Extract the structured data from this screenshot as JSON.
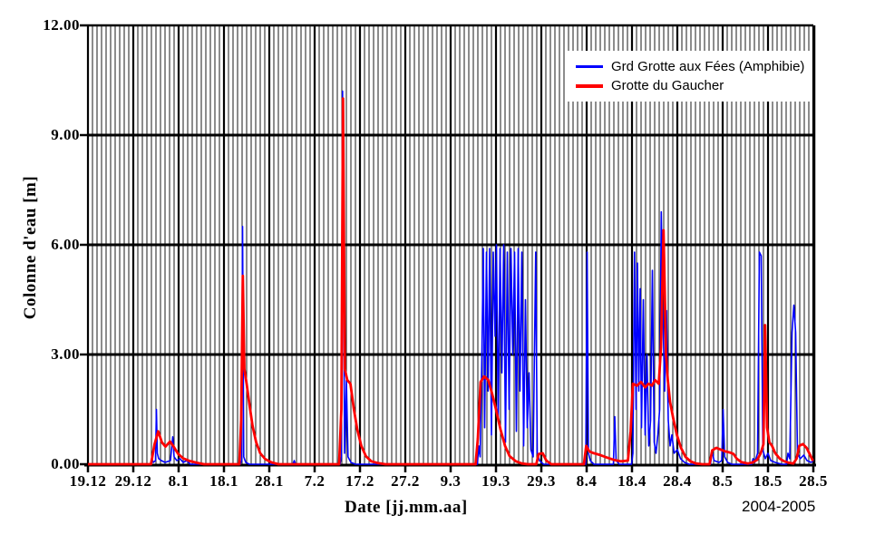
{
  "figure": {
    "y_axis_title": "Colonne d'eau [m]",
    "x_axis_title": "Date [jj.mm.aa]",
    "period_label": "2004-2005"
  },
  "legend": {
    "items": [
      {
        "label": "Grd Grotte aux Fées (Amphibie)",
        "color": "#0000ff",
        "thickness": 3
      },
      {
        "label": "Grotte du Gaucher",
        "color": "#ff0000",
        "thickness": 4
      }
    ]
  },
  "chart_data": {
    "type": "line",
    "title": "",
    "xlabel": "Date [jj.mm.aa]",
    "ylabel": "Colonne d'eau [m]",
    "x_unit": "days since 19.12.2004",
    "xlim": [
      0,
      160
    ],
    "ylim": [
      0,
      12
    ],
    "grid": {
      "vertical_every_days": 1,
      "vertical_major_every_days": 10,
      "horizontal_major_at": [
        3,
        6,
        9
      ]
    },
    "legend_position": "top-right",
    "y_ticks": [
      {
        "value": 0,
        "label": "0.00"
      },
      {
        "value": 3,
        "label": "3.00"
      },
      {
        "value": 6,
        "label": "6.00"
      },
      {
        "value": 9,
        "label": "9.00"
      },
      {
        "value": 12,
        "label": "12.00"
      }
    ],
    "x_ticks": [
      {
        "day": 0,
        "label": "19.12"
      },
      {
        "day": 10,
        "label": "29.12"
      },
      {
        "day": 20,
        "label": "8.1"
      },
      {
        "day": 30,
        "label": "18.1"
      },
      {
        "day": 40,
        "label": "28.1"
      },
      {
        "day": 50,
        "label": "7.2"
      },
      {
        "day": 60,
        "label": "17.2"
      },
      {
        "day": 70,
        "label": "27.2"
      },
      {
        "day": 80,
        "label": "9.3"
      },
      {
        "day": 90,
        "label": "19.3"
      },
      {
        "day": 100,
        "label": "29.3"
      },
      {
        "day": 110,
        "label": "8.4"
      },
      {
        "day": 120,
        "label": "18.4"
      },
      {
        "day": 130,
        "label": "28.4"
      },
      {
        "day": 140,
        "label": "8.5"
      },
      {
        "day": 150,
        "label": "18.5"
      },
      {
        "day": 160,
        "label": "28.5"
      }
    ],
    "series": [
      {
        "name": "Grd Grotte aux Fées (Amphibie)",
        "color": "#0000ff",
        "stroke_width": 1.6,
        "points": [
          [
            0,
            0
          ],
          [
            13.8,
            0
          ],
          [
            14.1,
            0.15
          ],
          [
            14.4,
            0.05
          ],
          [
            14.9,
            0.1
          ],
          [
            15.1,
            1.5
          ],
          [
            15.3,
            0.3
          ],
          [
            15.6,
            0.15
          ],
          [
            16.2,
            0.1
          ],
          [
            17,
            0.05
          ],
          [
            18.2,
            0.1
          ],
          [
            18.7,
            0.75
          ],
          [
            19,
            0.2
          ],
          [
            19.6,
            0.1
          ],
          [
            20.3,
            0.15
          ],
          [
            21,
            0.05
          ],
          [
            21.8,
            0.1
          ],
          [
            22.6,
            0
          ],
          [
            33.6,
            0
          ],
          [
            33.9,
            0.1
          ],
          [
            34.1,
            6.5
          ],
          [
            34.35,
            0.2
          ],
          [
            34.8,
            0.05
          ],
          [
            35.6,
            0
          ],
          [
            45.2,
            0
          ],
          [
            45.5,
            0.1
          ],
          [
            45.8,
            0
          ],
          [
            55.6,
            0
          ],
          [
            55.9,
            0.2
          ],
          [
            56.15,
            10.2
          ],
          [
            56.4,
            4.9
          ],
          [
            56.6,
            0.3
          ],
          [
            57,
            2.3
          ],
          [
            57.35,
            0.2
          ],
          [
            58,
            0.05
          ],
          [
            59,
            0
          ],
          [
            85.9,
            0
          ],
          [
            86.2,
            0.5
          ],
          [
            86.5,
            0.2
          ],
          [
            86.9,
            3
          ],
          [
            87.2,
            5.9
          ],
          [
            87.5,
            1
          ],
          [
            87.9,
            5.8
          ],
          [
            88.25,
            2
          ],
          [
            88.6,
            5.9
          ],
          [
            89,
            0.8
          ],
          [
            89.4,
            5.8
          ],
          [
            89.8,
            3.5
          ],
          [
            90.1,
            6
          ],
          [
            90.5,
            1.2
          ],
          [
            90.9,
            5.9
          ],
          [
            91.3,
            2.5
          ],
          [
            91.7,
            6
          ],
          [
            92.1,
            0.6
          ],
          [
            92.5,
            5.8
          ],
          [
            92.9,
            1.5
          ],
          [
            93.3,
            5.9
          ],
          [
            93.7,
            3
          ],
          [
            94.1,
            5.8
          ],
          [
            94.5,
            0.9
          ],
          [
            94.9,
            5.9
          ],
          [
            95.3,
            2
          ],
          [
            95.7,
            5.8
          ],
          [
            96.1,
            0.5
          ],
          [
            96.5,
            4.5
          ],
          [
            96.9,
            1
          ],
          [
            97.3,
            2.5
          ],
          [
            97.7,
            0.4
          ],
          [
            98.2,
            0.2
          ],
          [
            98.75,
            5.8
          ],
          [
            99.1,
            0.3
          ],
          [
            99.6,
            0.1
          ],
          [
            100.5,
            0
          ],
          [
            109.8,
            0
          ],
          [
            110.1,
            5.8
          ],
          [
            110.4,
            0.3
          ],
          [
            110.8,
            0.1
          ],
          [
            111.6,
            0
          ],
          [
            115.9,
            0
          ],
          [
            116.2,
            1.3
          ],
          [
            116.5,
            0.1
          ],
          [
            117.2,
            0
          ],
          [
            119.9,
            0
          ],
          [
            120.2,
            0.3
          ],
          [
            120.55,
            5.8
          ],
          [
            120.9,
            1.5
          ],
          [
            121.2,
            5.5
          ],
          [
            121.5,
            2
          ],
          [
            121.8,
            4.8
          ],
          [
            122.1,
            1
          ],
          [
            122.5,
            4.5
          ],
          [
            122.9,
            0.8
          ],
          [
            123.3,
            3
          ],
          [
            123.7,
            0.5
          ],
          [
            124.1,
            1.2
          ],
          [
            124.5,
            5.3
          ],
          [
            124.9,
            0.6
          ],
          [
            125.3,
            0.3
          ],
          [
            125.7,
            0.8
          ],
          [
            126.1,
            1.5
          ],
          [
            126.45,
            6.9
          ],
          [
            126.8,
            4.2
          ],
          [
            127.2,
            2
          ],
          [
            127.6,
            4.2
          ],
          [
            128,
            1.2
          ],
          [
            128.4,
            0.5
          ],
          [
            128.8,
            0.8
          ],
          [
            129.3,
            0.3
          ],
          [
            130,
            0.4
          ],
          [
            130.7,
            0.15
          ],
          [
            131.6,
            0.05
          ],
          [
            132.6,
            0
          ],
          [
            137.3,
            0
          ],
          [
            137.7,
            0.35
          ],
          [
            138.1,
            0.1
          ],
          [
            139.2,
            0.05
          ],
          [
            139.8,
            0.1
          ],
          [
            140.1,
            1.5
          ],
          [
            140.45,
            0.2
          ],
          [
            141.1,
            0.05
          ],
          [
            142,
            0
          ],
          [
            146.4,
            0
          ],
          [
            146.7,
            0.15
          ],
          [
            147.1,
            0.05
          ],
          [
            147.7,
            0.3
          ],
          [
            148.1,
            5.8
          ],
          [
            148.5,
            5.7
          ],
          [
            148.85,
            0.4
          ],
          [
            149.4,
            0.15
          ],
          [
            150,
            0.3
          ],
          [
            150.6,
            0.1
          ],
          [
            151.6,
            0.05
          ],
          [
            153,
            0
          ],
          [
            154.1,
            0
          ],
          [
            154.4,
            0.3
          ],
          [
            154.8,
            0.15
          ],
          [
            155.3,
            3.6
          ],
          [
            155.7,
            4.35
          ],
          [
            156.1,
            3.6
          ],
          [
            156.5,
            0.3
          ],
          [
            157.1,
            0.15
          ],
          [
            157.9,
            0.25
          ],
          [
            158.6,
            0.1
          ],
          [
            159.5,
            0.05
          ],
          [
            160,
            0.1
          ]
        ]
      },
      {
        "name": "Grotte du Gaucher",
        "color": "#ff0000",
        "stroke_width": 2.8,
        "points": [
          [
            0,
            0
          ],
          [
            13.9,
            0
          ],
          [
            14.7,
            0.55
          ],
          [
            15.5,
            0.9
          ],
          [
            16.3,
            0.6
          ],
          [
            17.1,
            0.48
          ],
          [
            18.1,
            0.62
          ],
          [
            18.9,
            0.48
          ],
          [
            19.9,
            0.28
          ],
          [
            21,
            0.16
          ],
          [
            22.4,
            0.09
          ],
          [
            24,
            0.04
          ],
          [
            25.6,
            0
          ],
          [
            33.4,
            0
          ],
          [
            33.8,
            1.2
          ],
          [
            34.15,
            5.15
          ],
          [
            34.5,
            2.6
          ],
          [
            35,
            2.2
          ],
          [
            35.6,
            1.65
          ],
          [
            36.3,
            1.05
          ],
          [
            37.1,
            0.6
          ],
          [
            38,
            0.3
          ],
          [
            39.1,
            0.14
          ],
          [
            40.5,
            0.05
          ],
          [
            42,
            0
          ],
          [
            55.4,
            0
          ],
          [
            55.9,
            1.5
          ],
          [
            56.25,
            10
          ],
          [
            56.65,
            2.6
          ],
          [
            57.2,
            2.3
          ],
          [
            57.9,
            2.2
          ],
          [
            58.6,
            1.55
          ],
          [
            59.4,
            0.95
          ],
          [
            60.3,
            0.5
          ],
          [
            61.3,
            0.22
          ],
          [
            62.5,
            0.08
          ],
          [
            64,
            0.03
          ],
          [
            65.6,
            0
          ],
          [
            85.5,
            0
          ],
          [
            86,
            0.7
          ],
          [
            86.6,
            2.25
          ],
          [
            87.4,
            2.4
          ],
          [
            88.3,
            2.3
          ],
          [
            89.1,
            1.95
          ],
          [
            90,
            1.5
          ],
          [
            91,
            0.95
          ],
          [
            92,
            0.5
          ],
          [
            93,
            0.22
          ],
          [
            94.4,
            0.08
          ],
          [
            95.7,
            0.02
          ],
          [
            97,
            0
          ],
          [
            98.9,
            0
          ],
          [
            99.4,
            0.28
          ],
          [
            100.3,
            0.3
          ],
          [
            101.1,
            0.1
          ],
          [
            102.2,
            0
          ],
          [
            109.4,
            0
          ],
          [
            109.9,
            0.5
          ],
          [
            110.6,
            0.35
          ],
          [
            111.6,
            0.3
          ],
          [
            113,
            0.25
          ],
          [
            114.5,
            0.18
          ],
          [
            116,
            0.12
          ],
          [
            117.5,
            0.08
          ],
          [
            119.1,
            0.1
          ],
          [
            119.7,
            0.9
          ],
          [
            120.2,
            2.2
          ],
          [
            121.1,
            2.15
          ],
          [
            122,
            2.25
          ],
          [
            122.9,
            2.1
          ],
          [
            123.6,
            2.2
          ],
          [
            124.4,
            2.15
          ],
          [
            125.1,
            2.3
          ],
          [
            125.9,
            2.2
          ],
          [
            126.4,
            3.2
          ],
          [
            126.95,
            6.4
          ],
          [
            127.5,
            3
          ],
          [
            127.9,
            2.3
          ],
          [
            128.4,
            1.7
          ],
          [
            129.1,
            1.25
          ],
          [
            129.9,
            0.8
          ],
          [
            130.8,
            0.45
          ],
          [
            131.8,
            0.2
          ],
          [
            132.9,
            0.08
          ],
          [
            134.1,
            0.02
          ],
          [
            135.5,
            0
          ],
          [
            137.1,
            0
          ],
          [
            137.7,
            0.38
          ],
          [
            138.6,
            0.45
          ],
          [
            139.6,
            0.4
          ],
          [
            140.6,
            0.35
          ],
          [
            141.6,
            0.32
          ],
          [
            142.4,
            0.28
          ],
          [
            143.1,
            0.15
          ],
          [
            144.1,
            0.06
          ],
          [
            145.6,
            0.02
          ],
          [
            146.6,
            0.05
          ],
          [
            147.6,
            0.12
          ],
          [
            148.4,
            0.3
          ],
          [
            149,
            0.55
          ],
          [
            149.35,
            3.8
          ],
          [
            149.8,
            1
          ],
          [
            150.3,
            0.6
          ],
          [
            150.9,
            0.5
          ],
          [
            151.6,
            0.3
          ],
          [
            152.6,
            0.15
          ],
          [
            153.6,
            0.08
          ],
          [
            154.6,
            0.04
          ],
          [
            155.6,
            0.02
          ],
          [
            156.3,
            0.15
          ],
          [
            156.9,
            0.5
          ],
          [
            157.7,
            0.55
          ],
          [
            158.5,
            0.45
          ],
          [
            159.3,
            0.25
          ],
          [
            159.8,
            0.12
          ],
          [
            160,
            0.1
          ]
        ]
      }
    ]
  }
}
